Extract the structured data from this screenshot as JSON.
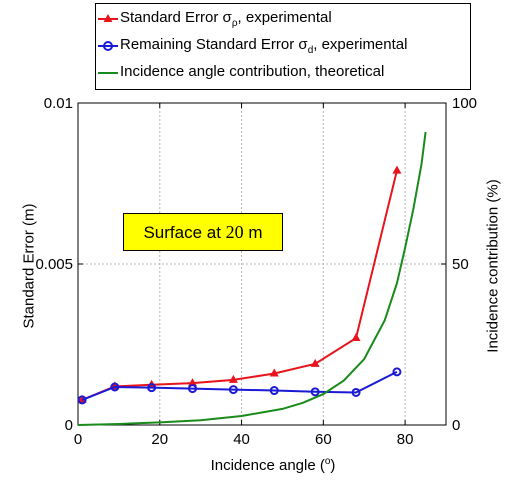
{
  "chart_data": {
    "type": "line",
    "xlabel_prefix": "Incidence angle (",
    "xlabel_sup": "o",
    "xlabel_suffix": ")",
    "ylabel_left": "Standard Error (m)",
    "ylabel_right": "Incidence contribution (%)",
    "xlim": [
      0,
      90
    ],
    "ylim_left": [
      0,
      0.01
    ],
    "ylim_right": [
      0,
      100
    ],
    "x_ticks": [
      "0",
      "20",
      "40",
      "60",
      "80"
    ],
    "x_tick_values": [
      0,
      20,
      40,
      60,
      80
    ],
    "y_ticks_left": [
      "0",
      "0.005",
      "0.01"
    ],
    "y_tick_values_left": [
      0,
      0.005,
      0.01
    ],
    "y_ticks_right": [
      "0",
      "50",
      "100"
    ],
    "y_tick_values_right": [
      0,
      50,
      100
    ],
    "grid": true,
    "legend_position": "top",
    "annotation": {
      "text": "Surface at ",
      "value": "20",
      "unit": " m"
    },
    "series": [
      {
        "legend_main": "Standard Error σ",
        "legend_sub": "ρ",
        "legend_rest": ", experimental",
        "color": "#e8141c",
        "marker": "triangle",
        "axis": "left",
        "x": [
          1,
          9,
          18,
          28,
          38,
          48,
          58,
          68,
          78
        ],
        "y": [
          0.00078,
          0.0012,
          0.00125,
          0.0013,
          0.0014,
          0.0016,
          0.0019,
          0.0027,
          0.0079
        ]
      },
      {
        "legend_main": "Remaining Standard Error σ",
        "legend_sub": "d",
        "legend_rest": ", experimental",
        "color": "#1a1ad6",
        "marker": "circle",
        "axis": "left",
        "x": [
          1,
          9,
          18,
          28,
          38,
          48,
          58,
          68,
          78
        ],
        "y": [
          0.00078,
          0.00118,
          0.00116,
          0.00113,
          0.0011,
          0.00107,
          0.00103,
          0.00101,
          0.00165
        ]
      },
      {
        "legend_main": "Incidence angle contribution, theoretical",
        "legend_sub": "",
        "legend_rest": "",
        "color": "#1a8a1a",
        "marker": "none",
        "axis": "right",
        "x": [
          0,
          10,
          20,
          30,
          40,
          50,
          55,
          60,
          65,
          70,
          75,
          78,
          80,
          82,
          84,
          85
        ],
        "y": [
          0,
          0.3,
          0.8,
          1.5,
          2.8,
          5,
          6.9,
          9.6,
          13.8,
          20.5,
          32.5,
          44,
          55,
          67,
          81,
          91
        ]
      }
    ],
    "colors": {
      "axis": "#000000",
      "grid": "#b5b5b5"
    }
  }
}
